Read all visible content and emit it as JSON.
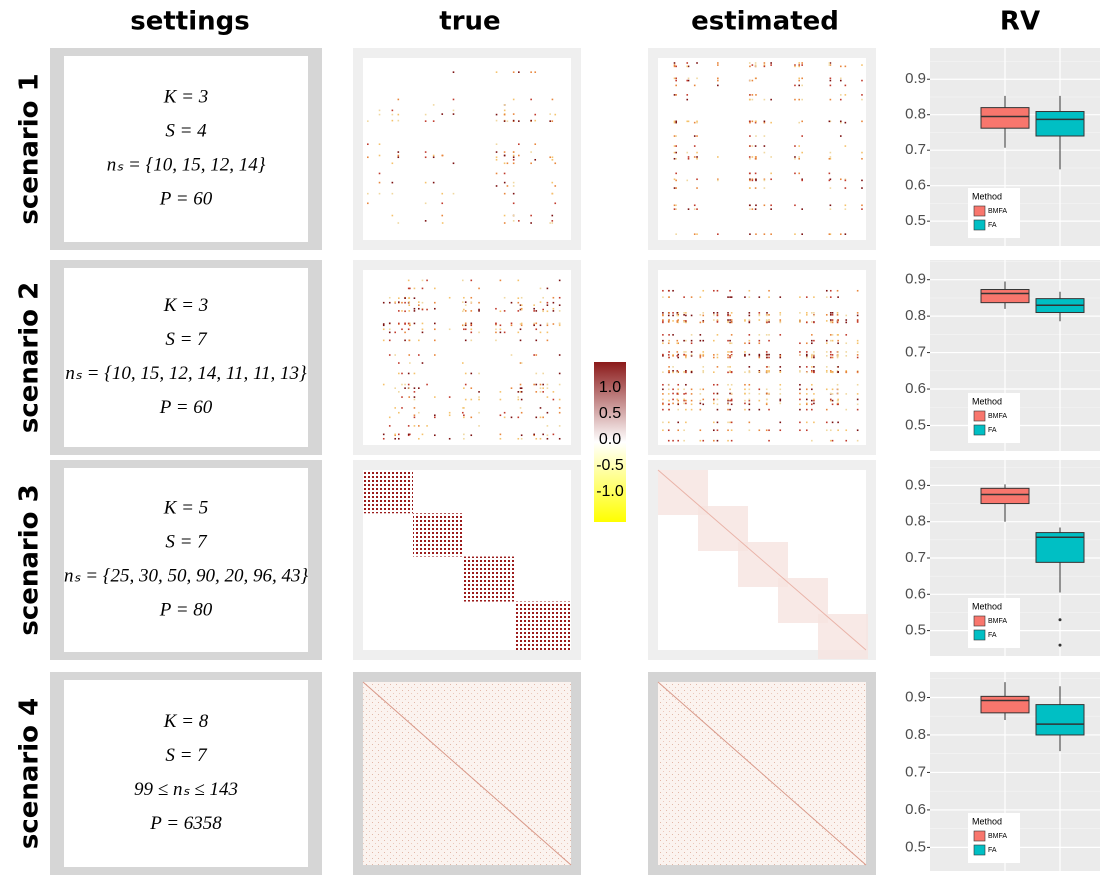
{
  "headers": [
    "settings",
    "true",
    "estimated",
    "RV"
  ],
  "rows": [
    {
      "label": "scenario 1",
      "settings": [
        "K = 3",
        "S = 4",
        "nₛ = {10, 15, 12, 14}",
        "P = 60"
      ]
    },
    {
      "label": "scenario 2",
      "settings": [
        "K = 3",
        "S = 7",
        "nₛ = {10, 15, 12, 14, 11, 11, 13}",
        "P = 60"
      ]
    },
    {
      "label": "scenario 3",
      "settings": [
        "K = 5",
        "S = 7",
        "nₛ = {25, 30, 50, 90, 20, 96, 43}",
        "P = 80"
      ]
    },
    {
      "label": "scenario 4",
      "settings": [
        "K = 8",
        "S = 7",
        "99 ≤ nₛ ≤ 143",
        "P = 6358"
      ]
    }
  ],
  "colorbar": {
    "ylim": [
      -1.58,
      1.5
    ],
    "colors": [
      "#ffff00",
      "#ffffff",
      "#8b1a1a"
    ],
    "ticks": [
      {
        "value": 1,
        "label": "1.0"
      },
      0.5,
      {
        "value": 0,
        "label": "0.0"
      },
      -0.5,
      {
        "value": -1,
        "label": "-1.0"
      }
    ]
  },
  "chart_data": [
    {
      "type": "box",
      "ylim": [
        0.43,
        0.988
      ],
      "yticks": [
        0.5,
        0.6,
        0.7,
        0.8,
        0.9
      ],
      "grid": true,
      "legend_title": "Method",
      "series": [
        {
          "name": "BMFA",
          "color": "#f8766d",
          "low": 0.707,
          "q1": 0.762,
          "median": 0.795,
          "q3": 0.82,
          "high": 0.853
        },
        {
          "name": "FA",
          "color": "#00bfc4",
          "low": 0.646,
          "q1": 0.74,
          "median": 0.787,
          "q3": 0.809,
          "high": 0.853
        }
      ]
    },
    {
      "type": "box",
      "ylim": [
        0.43,
        0.954
      ],
      "yticks": [
        0.5,
        0.6,
        0.7,
        0.8,
        0.9
      ],
      "grid": true,
      "legend_title": "Method",
      "series": [
        {
          "name": "BMFA",
          "color": "#f8766d",
          "low": 0.82,
          "q1": 0.837,
          "median": 0.862,
          "q3": 0.873,
          "high": 0.895
        },
        {
          "name": "FA",
          "color": "#00bfc4",
          "low": 0.786,
          "q1": 0.81,
          "median": 0.83,
          "q3": 0.848,
          "high": 0.867
        }
      ]
    },
    {
      "type": "box",
      "ylim": [
        0.43,
        0.97
      ],
      "yticks": [
        0.5,
        0.6,
        0.7,
        0.8,
        0.9
      ],
      "grid": true,
      "legend_title": "Method",
      "series": [
        {
          "name": "BMFA",
          "color": "#f8766d",
          "low": 0.8,
          "q1": 0.85,
          "median": 0.875,
          "q3": 0.892,
          "high": 0.903
        },
        {
          "name": "FA",
          "color": "#00bfc4",
          "low": 0.605,
          "q1": 0.688,
          "median": 0.757,
          "q3": 0.77,
          "high": 0.784,
          "outliers": [
            0.53,
            0.46
          ]
        }
      ]
    },
    {
      "type": "box",
      "ylim": [
        0.437,
        0.968
      ],
      "yticks": [
        0.5,
        0.6,
        0.7,
        0.8,
        0.9
      ],
      "grid": true,
      "legend_title": "Method",
      "series": [
        {
          "name": "BMFA",
          "color": "#f8766d",
          "low": 0.84,
          "q1": 0.859,
          "median": 0.892,
          "q3": 0.903,
          "high": 0.941
        },
        {
          "name": "FA",
          "color": "#00bfc4",
          "low": 0.757,
          "q1": 0.8,
          "median": 0.829,
          "q3": 0.881,
          "high": 0.93
        }
      ]
    }
  ]
}
